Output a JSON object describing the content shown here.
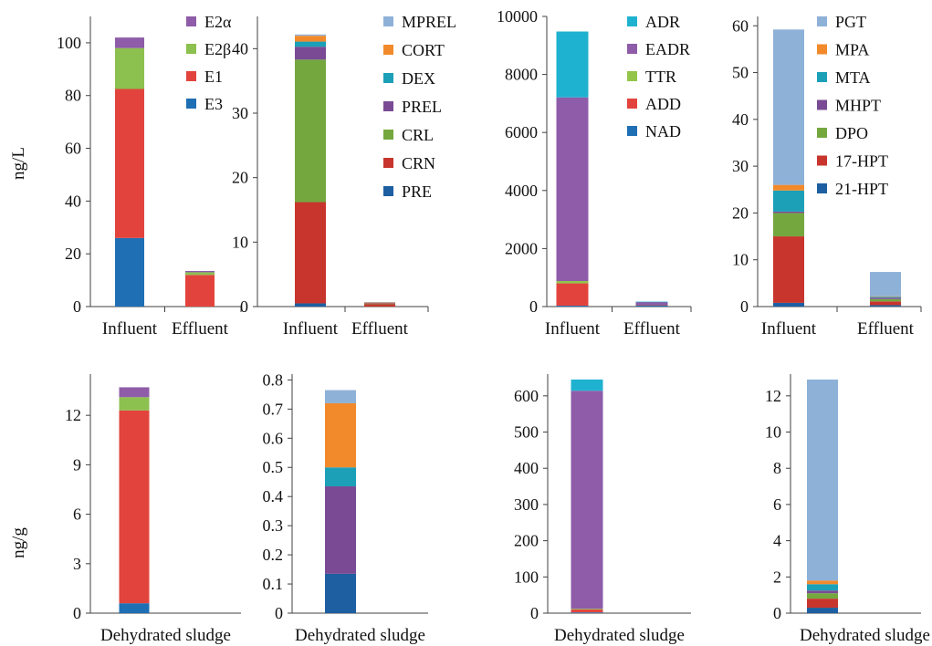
{
  "colors": {
    "blue": "#1f6fb5",
    "red": "#e2443d",
    "green": "#8cc04f",
    "purple": "#8e5ca8",
    "lightblue": "#8eb1d8",
    "orange": "#f28a2b",
    "teal": "#1ba0b8",
    "darkred": "#c8352d",
    "darkgreen": "#74a83f",
    "darkblue": "#1d5fa1",
    "darkpurple": "#7a4b94",
    "cyan": "#1fb2d0",
    "lime": "#93c54a"
  },
  "ylabel_top": "ng/L",
  "ylabel_bottom": "ng/g",
  "chart_data": [
    {
      "type": "bar",
      "stacked": true,
      "categories": [
        "Influent",
        "Effluent"
      ],
      "ylim": [
        0,
        110
      ],
      "yticks": [
        0,
        20,
        40,
        60,
        80,
        100
      ],
      "legend": "top-right",
      "series": [
        {
          "name": "E3",
          "color": "#1f6fb5",
          "values": [
            26,
            0
          ]
        },
        {
          "name": "E1",
          "color": "#e2443d",
          "values": [
            56.5,
            12
          ]
        },
        {
          "name": "E2β",
          "color": "#8cc04f",
          "values": [
            15.5,
            1
          ]
        },
        {
          "name": "E2α",
          "color": "#8e5ca8",
          "values": [
            4,
            0.5
          ]
        }
      ]
    },
    {
      "type": "bar",
      "stacked": true,
      "categories": [
        "Influent",
        "Effluent"
      ],
      "ylim": [
        0,
        45
      ],
      "yticks": [
        0,
        10,
        20,
        30,
        40
      ],
      "legend": "top-right",
      "series": [
        {
          "name": "PRE",
          "color": "#1d5fa1",
          "values": [
            0.5,
            0
          ]
        },
        {
          "name": "CRN",
          "color": "#c8352d",
          "values": [
            15.7,
            0.4
          ]
        },
        {
          "name": "CRL",
          "color": "#74a83f",
          "values": [
            22.1,
            0.05
          ]
        },
        {
          "name": "PREL",
          "color": "#7a4b94",
          "values": [
            2,
            0.05
          ]
        },
        {
          "name": "DEX",
          "color": "#1ba0b8",
          "values": [
            0.8,
            0
          ]
        },
        {
          "name": "CORT",
          "color": "#f28a2b",
          "values": [
            0.9,
            0.15
          ]
        },
        {
          "name": "MPREL",
          "color": "#8eb1d8",
          "values": [
            0.2,
            0.05
          ]
        }
      ]
    },
    {
      "type": "bar",
      "stacked": true,
      "categories": [
        "Influent",
        "Effluent"
      ],
      "ylim": [
        0,
        10000
      ],
      "yticks": [
        0,
        2000,
        4000,
        6000,
        8000,
        10000
      ],
      "legend": "top-right",
      "series": [
        {
          "name": "NAD",
          "color": "#1f6fb5",
          "values": [
            30,
            50
          ]
        },
        {
          "name": "ADD",
          "color": "#e2443d",
          "values": [
            770,
            10
          ]
        },
        {
          "name": "TTR",
          "color": "#93c54a",
          "values": [
            80,
            0
          ]
        },
        {
          "name": "EADR",
          "color": "#8e5ca8",
          "values": [
            6330,
            100
          ]
        },
        {
          "name": "ADR",
          "color": "#1fb2d0",
          "values": [
            2270,
            10
          ]
        }
      ]
    },
    {
      "type": "bar",
      "stacked": true,
      "categories": [
        "Influent",
        "Effluent"
      ],
      "ylim": [
        0,
        62
      ],
      "yticks": [
        0,
        10,
        20,
        30,
        40,
        50,
        60
      ],
      "legend": "top-right",
      "series": [
        {
          "name": "21-HPT",
          "color": "#1d5fa1",
          "values": [
            0.8,
            0.3
          ]
        },
        {
          "name": "17-HPT",
          "color": "#c8352d",
          "values": [
            14.2,
            0.8
          ]
        },
        {
          "name": "DPO",
          "color": "#74a83f",
          "values": [
            5,
            0.5
          ]
        },
        {
          "name": "MHPT",
          "color": "#7a4b94",
          "values": [
            0.3,
            0.3
          ]
        },
        {
          "name": "MTA",
          "color": "#1ba0b8",
          "values": [
            4.5,
            0.2
          ]
        },
        {
          "name": "MPA",
          "color": "#f28a2b",
          "values": [
            1.2,
            0.1
          ]
        },
        {
          "name": "PGT",
          "color": "#8eb1d8",
          "values": [
            33.2,
            5.2
          ]
        }
      ]
    },
    {
      "type": "bar",
      "stacked": true,
      "categories": [
        "Dehydrated sludge"
      ],
      "ylim": [
        0,
        14.5
      ],
      "yticks": [
        0,
        3,
        6,
        9,
        12
      ],
      "series": [
        {
          "name": "E3",
          "color": "#1f6fb5",
          "values": [
            0.6
          ]
        },
        {
          "name": "E1",
          "color": "#e2443d",
          "values": [
            11.7
          ]
        },
        {
          "name": "E2β",
          "color": "#8cc04f",
          "values": [
            0.8
          ]
        },
        {
          "name": "E2α",
          "color": "#8e5ca8",
          "values": [
            0.6
          ]
        }
      ]
    },
    {
      "type": "bar",
      "stacked": true,
      "categories": [
        "Dehydrated sludge"
      ],
      "ylim": [
        0,
        0.82
      ],
      "yticks": [
        0,
        0.1,
        0.2,
        0.3,
        0.4,
        0.5,
        0.6,
        0.7,
        0.8
      ],
      "series": [
        {
          "name": "PRE",
          "color": "#1d5fa1",
          "values": [
            0.135
          ]
        },
        {
          "name": "CRN",
          "color": "#c8352d",
          "values": [
            0
          ]
        },
        {
          "name": "CRL",
          "color": "#74a83f",
          "values": [
            0
          ]
        },
        {
          "name": "PREL",
          "color": "#7a4b94",
          "values": [
            0.3
          ]
        },
        {
          "name": "DEX",
          "color": "#1ba0b8",
          "values": [
            0.065
          ]
        },
        {
          "name": "CORT",
          "color": "#f28a2b",
          "values": [
            0.22
          ]
        },
        {
          "name": "MPREL",
          "color": "#8eb1d8",
          "values": [
            0.045
          ]
        }
      ]
    },
    {
      "type": "bar",
      "stacked": true,
      "categories": [
        "Dehydrated sludge"
      ],
      "ylim": [
        0,
        660
      ],
      "yticks": [
        0,
        100,
        200,
        300,
        400,
        500,
        600
      ],
      "series": [
        {
          "name": "NAD",
          "color": "#1f6fb5",
          "values": [
            2
          ]
        },
        {
          "name": "ADD",
          "color": "#e2443d",
          "values": [
            8
          ]
        },
        {
          "name": "TTR",
          "color": "#93c54a",
          "values": [
            2
          ]
        },
        {
          "name": "EADR",
          "color": "#8e5ca8",
          "values": [
            602
          ]
        },
        {
          "name": "ADR",
          "color": "#1fb2d0",
          "values": [
            31
          ]
        }
      ]
    },
    {
      "type": "bar",
      "stacked": true,
      "categories": [
        "Dehydrated sludge"
      ],
      "ylim": [
        0,
        13.2
      ],
      "yticks": [
        0,
        2,
        4,
        6,
        8,
        10,
        12
      ],
      "series": [
        {
          "name": "21-HPT",
          "color": "#1d5fa1",
          "values": [
            0.3
          ]
        },
        {
          "name": "17-HPT",
          "color": "#c8352d",
          "values": [
            0.5
          ]
        },
        {
          "name": "DPO",
          "color": "#74a83f",
          "values": [
            0.3
          ]
        },
        {
          "name": "MHPT",
          "color": "#7a4b94",
          "values": [
            0.15
          ]
        },
        {
          "name": "MTA",
          "color": "#1ba0b8",
          "values": [
            0.35
          ]
        },
        {
          "name": "MPA",
          "color": "#f28a2b",
          "values": [
            0.2
          ]
        },
        {
          "name": "PGT",
          "color": "#8eb1d8",
          "values": [
            11.1
          ]
        }
      ]
    }
  ]
}
